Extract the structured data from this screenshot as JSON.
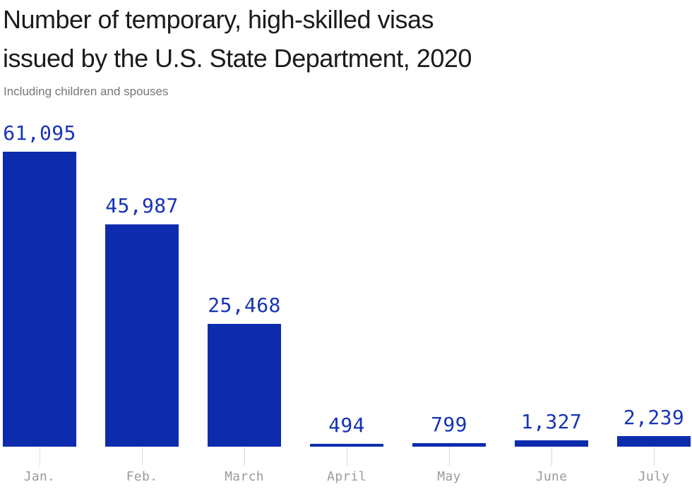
{
  "title_lines": [
    "Number of temporary, high-skilled visas",
    "issued by the U.S. State Department, 2020"
  ],
  "subtitle": "Including children and spouses",
  "colors": {
    "background": "#ffffff",
    "bar": "#0d2cad",
    "value_label": "#1733b6",
    "title": "#1b1b1b",
    "subtitle": "#757575",
    "month_label": "#9b9b9b",
    "tick": "#d8d8d8"
  },
  "chart_data": {
    "type": "bar",
    "title": "Number of temporary, high-skilled visas issued by the U.S. State Department, 2020",
    "subtitle": "Including children and spouses",
    "categories": [
      "Jan.",
      "Feb.",
      "March",
      "April",
      "May",
      "June",
      "July"
    ],
    "values": [
      61095,
      45987,
      25468,
      494,
      799,
      1327,
      2239
    ],
    "value_labels": [
      "61,095",
      "45,987",
      "25,468",
      "494",
      "799",
      "1,327",
      "2,239"
    ],
    "xlabel": "",
    "ylabel": "",
    "ylim": [
      0,
      61095
    ],
    "grid": false,
    "legend": false,
    "bar_color": "#0d2cad",
    "orientation": "vertical"
  }
}
